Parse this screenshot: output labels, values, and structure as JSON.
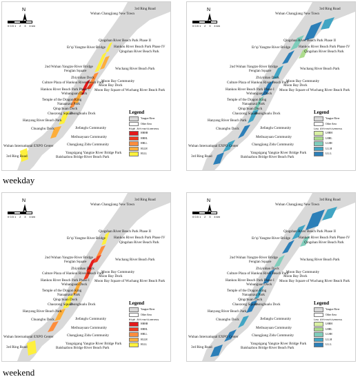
{
  "captions": {
    "top": "weekday",
    "bottom": "weekend"
  },
  "map": {
    "north": "N",
    "scale_ticks": [
      "0 0.5 1",
      "2",
      "3",
      "4 km"
    ],
    "places": {
      "ring3_ne": "3rd Ring Road",
      "changjiang_new_town": "Wuhan Changjiang New Town",
      "qingshan_phase2": "Qingshan River Beach Park Phase II",
      "erqi_bridge": "Er'qi Yangtze River Bridge",
      "hankou_phase4": "Hankou River Beach Park Phase IV",
      "qingshan_beach": "Qingshan River Beach Park",
      "second_bridge": "2nd Wuhan Yangtze River Bridge",
      "fenglan": "Fenglan Square",
      "wuchang_beach": "Wuchang River Beach Park",
      "zhiyinhao": "Zhiyinhao Dock",
      "culture_plaza": "Culture Plaza of Hankou River Beach Park",
      "moon_bay_comm": "Moon Bay Community",
      "moon_bay_dock": "Moon Bay Dock",
      "hankou_phase1": "Hankou River Beach Park Phase I",
      "moon_bay_square": "Moon Bay Square of Wuchang River Beach Park",
      "wuhanguan": "Wuhanguan Dock",
      "dragon_king": "Temple of the Dragon King",
      "nananzui": "Nanaanzui Park",
      "qingchuan": "Qingchuan Dock",
      "chaozong": "Chaozong Square",
      "zhonghualu": "Zhonghualu Dock",
      "hanyang_beach": "Hanyang River Beach Park",
      "jiefanglu": "Jiefanglu Community",
      "chuangbu": "Chuangbu Dock",
      "meihuayuan": "Meihuayuan Community",
      "zidu": "Changjiang Zidu Community",
      "expo": "Wuhan International EXPO Center",
      "yangsigang": "Yangsigang Yangtze River Bridge Park",
      "ring3_sw": "3rd Ring Road",
      "baishazhou": "Baishazhou Bridge River Beach Park"
    }
  },
  "legend_high": {
    "title": "Legend",
    "river": "Yangtze River",
    "other": "Other Area",
    "caption": "High Attractiveness",
    "classes": [
      {
        "label": "HHHH",
        "color": "#e31a1c"
      },
      {
        "label": "HHHL",
        "color": "#f03b20"
      },
      {
        "label": "HHLL",
        "color": "#fd8d3c"
      },
      {
        "label": "HLLH",
        "color": "#fdae3b"
      },
      {
        "label": "HLLL",
        "color": "#fef03d"
      }
    ]
  },
  "legend_low": {
    "title": "Legend",
    "river": "Yangtze River",
    "other": "Other Area",
    "caption": "Low Attractiveness",
    "classes": [
      {
        "label": "LHHH",
        "color": "#d9f0a3"
      },
      {
        "label": "LHHL",
        "color": "#addd8e"
      },
      {
        "label": "LLHH",
        "color": "#7fcdbb"
      },
      {
        "label": "LLLH",
        "color": "#41a5c4"
      },
      {
        "label": "LLLL",
        "color": "#2c7fb8"
      }
    ]
  },
  "colors": {
    "river": "#d9d9d9",
    "other_area": "#ffffff"
  }
}
